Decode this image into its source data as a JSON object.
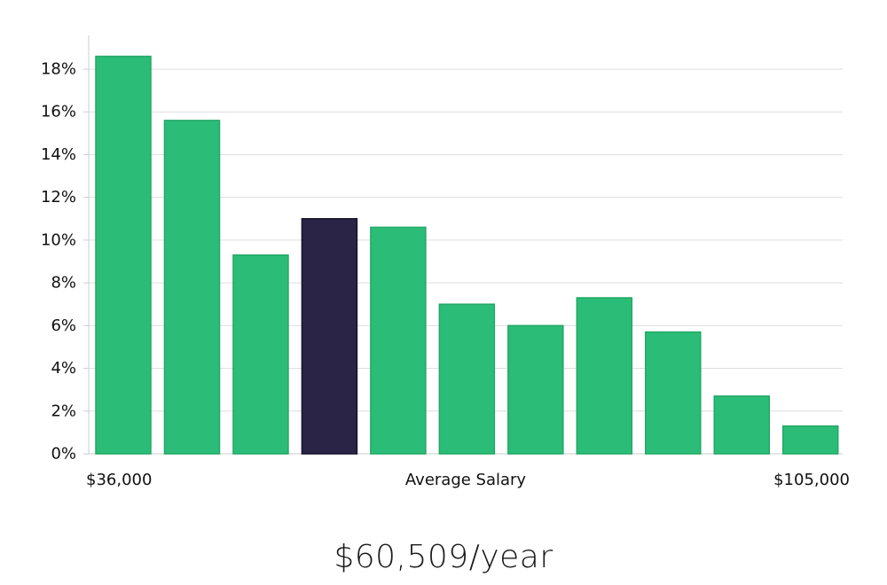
{
  "chart_data": {
    "type": "bar",
    "xlabel": "Average Salary",
    "x_min_label": "$36,000",
    "x_max_label": "$105,000",
    "values": [
      18.6,
      15.6,
      9.3,
      11.0,
      10.6,
      7.0,
      6.0,
      7.3,
      5.7,
      2.7,
      1.3
    ],
    "highlight_index": 3,
    "ylim": [
      0,
      18
    ],
    "y_ticks": [
      0,
      2,
      4,
      6,
      8,
      10,
      12,
      14,
      16,
      18
    ],
    "y_tick_suffix": "%",
    "grid": true,
    "colors": {
      "bar": "#2bbd77",
      "bar_edge": "#23a866",
      "highlight": "#2a2547",
      "highlight_edge": "#15122b"
    }
  },
  "summary": {
    "average_salary": "$60,509/year"
  }
}
